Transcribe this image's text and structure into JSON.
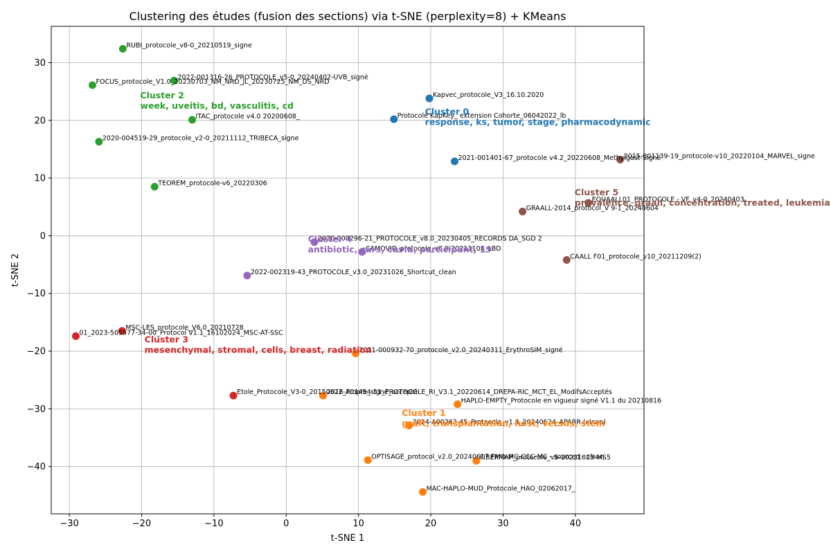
{
  "chart_data": {
    "type": "scatter",
    "title": "Clustering des études (fusion des sections) via t-SNE (perplexity=8) + KMeans",
    "xlabel": "t-SNE 1",
    "ylabel": "t-SNE 2",
    "xlim": [
      -32.5,
      49.5
    ],
    "ylim": [
      -48.2,
      36.3
    ],
    "xticks": [
      -30,
      -20,
      -10,
      0,
      10,
      20,
      30,
      40
    ],
    "yticks": [
      -40,
      -30,
      -20,
      -10,
      0,
      10,
      20,
      30
    ],
    "xtick_labels": [
      "−30",
      "−20",
      "−10",
      "0",
      "10",
      "20",
      "30",
      "40"
    ],
    "ytick_labels": [
      "−40",
      "−30",
      "−20",
      "−10",
      "0",
      "10",
      "20",
      "30"
    ],
    "grid": true,
    "clusters": [
      {
        "id": 0,
        "title": "Cluster 0",
        "keywords": "response, ks, tumor, stage, pharmacodynamic",
        "color": "#1f77b4",
        "label_x": 19.2,
        "label_y": 21.0
      },
      {
        "id": 1,
        "title": "Cluster 1",
        "keywords": "graft, transplantation, host, versus, stem",
        "color": "#ff7f0e",
        "label_x": 16.0,
        "label_y": -31.2
      },
      {
        "id": 2,
        "title": "Cluster 2",
        "keywords": "week, uveitis, bd, vasculitis, cd",
        "color": "#2ca02c",
        "label_x": -20.2,
        "label_y": 23.8
      },
      {
        "id": 3,
        "title": "Cluster 3",
        "keywords": "mesenchymal, stromal, cells, breast, radiation",
        "color": "#d62728",
        "label_x": -19.6,
        "label_y": -18.5
      },
      {
        "id": 4,
        "title": "Cluster 4",
        "keywords": "antibiotic, cars, covid, participant, 19",
        "color": "#9467bd",
        "label_x": 3.0,
        "label_y": -1.1
      },
      {
        "id": 5,
        "title": "Cluster 5",
        "keywords": "prevalence, graall, concentration, treated, leukemia",
        "color": "#8c564b",
        "label_x": 39.9,
        "label_y": 7.0
      }
    ],
    "points": [
      {
        "x": -22.6,
        "y": 32.4,
        "cluster": 2,
        "label": "RUBI_protocole_v8-0_20210519_signe"
      },
      {
        "x": -15.5,
        "y": 26.9,
        "cluster": 2,
        "label": "2022-001316-26_PROTOCOLE_v5-0_20240402-UVB_signé"
      },
      {
        "x": -26.8,
        "y": 26.1,
        "cluster": 2,
        "label": "FOCUS_protocole_V1.0_20230703_NM_NRD_JL_20230725_NM_DS_NRD"
      },
      {
        "x": -13.0,
        "y": 20.1,
        "cluster": 2,
        "label": "ITAC_protocole v4.0 20200608_"
      },
      {
        "x": -25.9,
        "y": 16.3,
        "cluster": 2,
        "label": "2020-004519-29_protocole_v2-0_20211112_TRIBECA_signe"
      },
      {
        "x": -18.2,
        "y": 8.5,
        "cluster": 2,
        "label": "TEOREM_protocole-v6_20220306"
      },
      {
        "x": 19.8,
        "y": 23.8,
        "cluster": 0,
        "label": "Kapvec_protocole_V3_16.10.2020"
      },
      {
        "x": 14.9,
        "y": 20.2,
        "cluster": 0,
        "label": "Protocole KapKey_ extension Cohorte_06042022_lb"
      },
      {
        "x": 23.3,
        "y": 12.9,
        "cluster": 0,
        "label": "2021-001401-67_protocole v4.2_20220608_Methylgast-Signé"
      },
      {
        "x": 46.2,
        "y": 13.2,
        "cluster": 5,
        "label": "2015-001139-19_protocole-v10_20220104_MARVEL_signe"
      },
      {
        "x": 41.8,
        "y": 5.7,
        "cluster": 5,
        "label": "EQUAALL01_PROTOCOLE - VF_v4-0_20240403"
      },
      {
        "x": 32.7,
        "y": 4.2,
        "cluster": 5,
        "label": "GRAALL-2014_protocol_V 9-1_20240604"
      },
      {
        "x": 38.8,
        "y": -4.2,
        "cluster": 5,
        "label": "CAALL F01_protocole_v10_20211209(2)"
      },
      {
        "x": 3.9,
        "y": -1.1,
        "cluster": 4,
        "label": "2020-000296-21_PROTOCOLE_v8.0_20230405_RECORDS DA_SGD 2"
      },
      {
        "x": 10.5,
        "y": -2.8,
        "cluster": 4,
        "label": "CAMOVID_protocole_v6.0-20211108_LBD"
      },
      {
        "x": -5.4,
        "y": -6.9,
        "cluster": 4,
        "label": "2022-002319-43_PROTOCOLE_v3.0_20231026_Shortcut_clean"
      },
      {
        "x": -22.7,
        "y": -16.5,
        "cluster": 3,
        "label": "MSC-LES_protocole_V6.0_20210728"
      },
      {
        "x": -29.1,
        "y": -17.4,
        "cluster": 3,
        "label": "01_2023-505577-34-00_Protocol V1.1_16102024_MSC-AT-SSC"
      },
      {
        "x": -7.3,
        "y": -27.7,
        "cluster": 3,
        "label": "Etole_Protocole_V3-0_20150622_Propre_signé_accepté"
      },
      {
        "x": 9.6,
        "y": -20.4,
        "cluster": 1,
        "label": "2021-000932-70_protocole_v2.0_20240311_ErythroSIM_signé"
      },
      {
        "x": 5.1,
        "y": -27.7,
        "cluster": 1,
        "label": "2016-A01454-51_PROTOCOLE_RI_V3.1_20220614_DREPA-RIC_MCT_EL_ModifsAcceptés"
      },
      {
        "x": 23.7,
        "y": -29.2,
        "cluster": 1,
        "label": "HAPLO-EMPTY_Protocole en vigueur signé V1.1 du 20210816"
      },
      {
        "x": 17.0,
        "y": -32.9,
        "cluster": 1,
        "label": "2024-A00262-45_Protocole_v1.4_20240624_APARR (clean)"
      },
      {
        "x": 11.3,
        "y": -38.9,
        "cluster": 1,
        "label": "OPTISAGE_protocol_v2.0_20240617 FMO-MC-CCC-MC - sourced - clean"
      },
      {
        "x": 26.3,
        "y": -39.0,
        "cluster": 1,
        "label": "FIBERMAP_protocole_v5-20221025-MS5"
      },
      {
        "x": 18.9,
        "y": -44.4,
        "cluster": 1,
        "label": "MAC-HAPLO-MUD_Protocole_HAO_02062017_"
      }
    ]
  }
}
